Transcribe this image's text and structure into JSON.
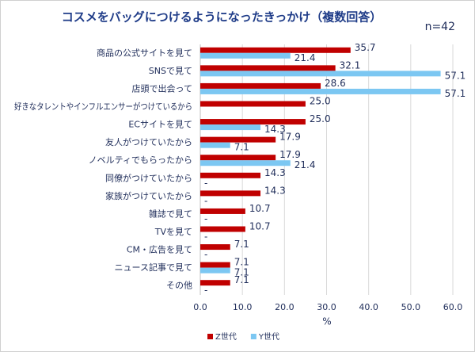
{
  "chart_data": {
    "type": "hbar",
    "title": "コスメをバッグにつけるようになったきっかけ（複数回答）",
    "subtitle": "n=42",
    "x_label": "%",
    "categories": [
      "商品の公式サイトを見て",
      "SNSで見て",
      "店頭で出会って",
      "好きなタレントやインフルエンサーがつけているから",
      "ECサイトを見て",
      "友人がつけていたから",
      "ノベルティでもらったから",
      "同僚がつけていたから",
      "家族がつけていたから",
      "雑誌で見て",
      "TVを見て",
      "CM・広告を見て",
      "ニュース記事で見て",
      "その他"
    ],
    "series": [
      {
        "name": "Z世代",
        "color": "#c00000",
        "values": [
          35.7,
          32.1,
          28.6,
          25.0,
          25.0,
          17.9,
          17.9,
          14.3,
          14.3,
          10.7,
          10.7,
          7.1,
          7.1,
          7.1
        ],
        "value_labels": [
          "35.7",
          "32.1",
          "28.6",
          "25.0",
          "25.0",
          "17.9",
          "17.9",
          "14.3",
          "14.3",
          "10.7",
          "10.7",
          "7.1",
          "7.1",
          "7.1"
        ]
      },
      {
        "name": "Y世代",
        "color": "#7cc7f2",
        "values": [
          21.4,
          57.1,
          57.1,
          null,
          14.3,
          7.1,
          21.4,
          0,
          0,
          0,
          0,
          0,
          7.1,
          0
        ],
        "value_labels": [
          "21.4",
          "57.1",
          "57.1",
          null,
          "14.3",
          "7.1",
          "21.4",
          "-",
          "-",
          "-",
          "-",
          "-",
          "7.1",
          "-"
        ]
      }
    ],
    "xlim": [
      0,
      60
    ],
    "xticks": [
      {
        "value": 0,
        "label": "0.0"
      },
      {
        "value": 10,
        "label": "10.0"
      },
      {
        "value": 20,
        "label": "20.0"
      },
      {
        "value": 30,
        "label": "30.0"
      },
      {
        "value": 40,
        "label": "40.0"
      },
      {
        "value": 50,
        "label": "50.0"
      },
      {
        "value": 60,
        "label": "60.0"
      }
    ],
    "grid": true,
    "legend": "bottom"
  }
}
